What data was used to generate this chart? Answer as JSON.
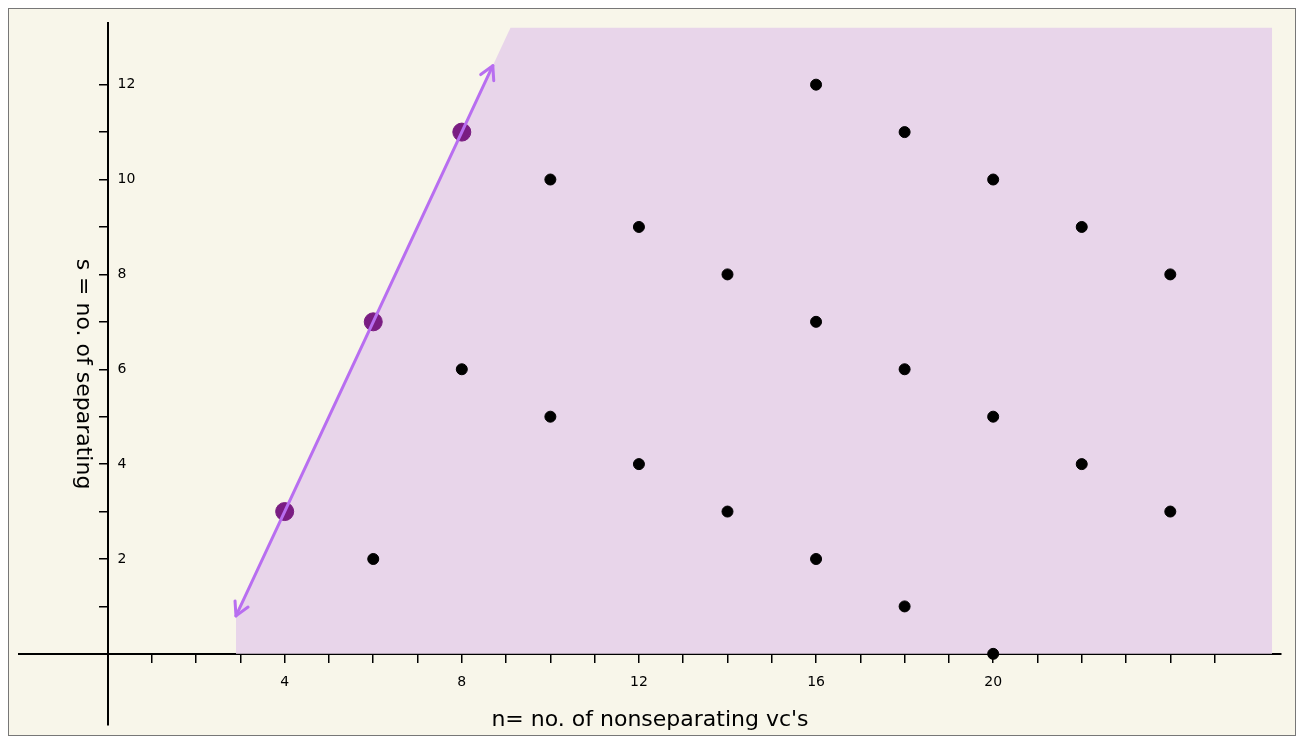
{
  "chart_data": {
    "type": "scatter",
    "xlabel": "n= no. of nonseparating vc's",
    "ylabel": "s = no. of separating",
    "xlim": [
      -2,
      26.5
    ],
    "ylim": [
      -1.5,
      13.3
    ],
    "xticks": [
      {
        "value": 1,
        "label": null
      },
      {
        "value": 2,
        "label": null
      },
      {
        "value": 3,
        "label": null
      },
      4,
      {
        "value": 5,
        "label": null
      },
      {
        "value": 6,
        "label": null
      },
      {
        "value": 7,
        "label": null
      },
      8,
      {
        "value": 9,
        "label": null
      },
      {
        "value": 10,
        "label": null
      },
      {
        "value": 11,
        "label": null
      },
      12,
      {
        "value": 13,
        "label": null
      },
      {
        "value": 14,
        "label": null
      },
      {
        "value": 15,
        "label": null
      },
      16,
      {
        "value": 17,
        "label": null
      },
      {
        "value": 18,
        "label": null
      },
      {
        "value": 19,
        "label": null
      },
      20,
      {
        "value": 21,
        "label": null
      },
      {
        "value": 22,
        "label": null
      },
      {
        "value": 23,
        "label": null
      },
      {
        "value": 24,
        "label": null
      },
      {
        "value": 25,
        "label": null
      }
    ],
    "yticks": [
      {
        "value": 1,
        "label": null
      },
      2,
      {
        "value": 3,
        "label": null
      },
      4,
      {
        "value": 5,
        "label": null
      },
      6,
      {
        "value": 7,
        "label": null
      },
      8,
      {
        "value": 9,
        "label": null
      },
      10,
      {
        "value": 11,
        "label": null
      },
      12
    ],
    "grid": false,
    "legend": false,
    "series": [
      {
        "type": "area",
        "color": "#e8d5ea",
        "x": [
          2.9,
          9.1,
          26.3
        ],
        "values": [
          0.8,
          13.2,
          13.2
        ]
      },
      {
        "color": "#7a1d82",
        "marker": "circle",
        "x": [
          4,
          6,
          8
        ],
        "values": [
          3,
          7,
          11
        ]
      },
      {
        "color": "#000000",
        "marker": "circle",
        "x": [
          6,
          8,
          10,
          10,
          12,
          12,
          14,
          14,
          16,
          16,
          16,
          18,
          18,
          18,
          20,
          20,
          20,
          22,
          22,
          24,
          24
        ],
        "values": [
          2,
          6,
          10,
          5,
          9,
          4,
          8,
          3,
          12,
          7,
          2,
          11,
          6,
          1,
          10,
          5,
          0,
          9,
          4,
          8,
          3
        ]
      }
    ]
  }
}
